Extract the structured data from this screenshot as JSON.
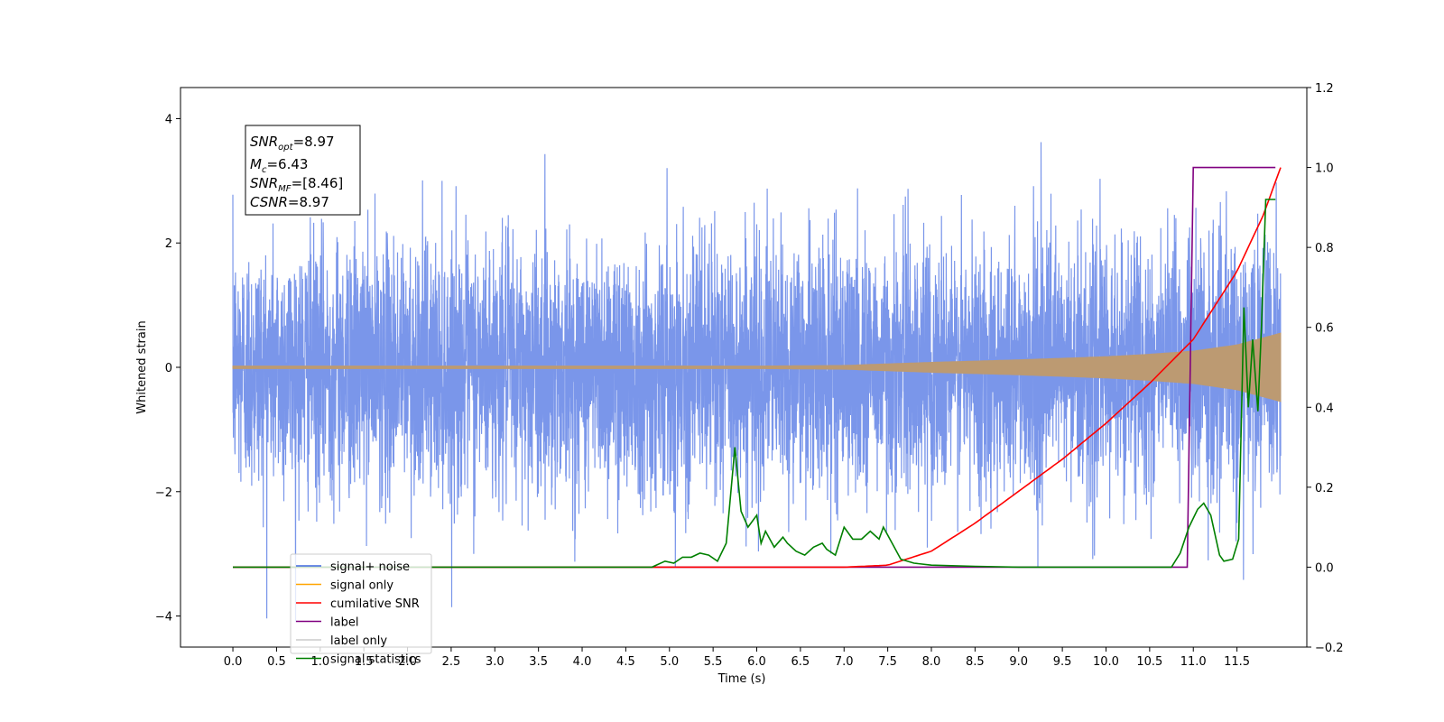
{
  "chart_data": {
    "type": "line",
    "xlabel": "Time (s)",
    "ylabel": "Whitened strain",
    "xlim": [
      -0.6,
      12.3
    ],
    "ylim": [
      -4.5,
      4.5
    ],
    "y2lim": [
      -0.2,
      1.2
    ],
    "x_ticks": [
      "0.0",
      "0.5",
      "1.0",
      "1.5",
      "2.0",
      "2.5",
      "3.0",
      "3.5",
      "4.0",
      "4.5",
      "5.0",
      "5.5",
      "6.0",
      "6.5",
      "7.0",
      "7.5",
      "8.0",
      "8.5",
      "9.0",
      "9.5",
      "10.0",
      "10.5",
      "11.0",
      "11.5"
    ],
    "y_ticks": [
      "−4",
      "−2",
      "0",
      "2",
      "4"
    ],
    "y2_ticks": [
      "−0.2",
      "0.0",
      "0.2",
      "0.4",
      "0.6",
      "0.8",
      "1.0",
      "1.2"
    ],
    "stats_box": {
      "snr_opt": {
        "name": "SNR",
        "sub": "opt",
        "value": "=8.97"
      },
      "mc": {
        "name": "M",
        "sub": "c",
        "value": "=6.43"
      },
      "snr_mf": {
        "name": "SNR",
        "sub": "MF",
        "value": "=[8.46]"
      },
      "csnr": {
        "name": "CSNR",
        "sub": "",
        "value": "=8.97"
      }
    },
    "legend": {
      "placement": "lower-left",
      "entries": [
        {
          "label": "signal+ noise",
          "color": "#4169e1"
        },
        {
          "label": "signal only",
          "color": "#ffa500"
        },
        {
          "label": "cumilative SNR",
          "color": "#ff0000"
        },
        {
          "label": "label",
          "color": "#800080"
        },
        {
          "label": "label only",
          "color": "#cccccc"
        },
        {
          "label": "signal statistics",
          "color": "#008000"
        }
      ]
    },
    "series": [
      {
        "name": "signal+ noise",
        "axis": "left",
        "color": "#4169e1",
        "x_range": [
          0.0,
          12.0
        ],
        "description_std": 1.0
      },
      {
        "name": "signal only",
        "axis": "left",
        "color": "#ffa500",
        "x": [
          0.0,
          6.0,
          7.0,
          8.0,
          9.0,
          10.0,
          10.5,
          11.0,
          11.5,
          12.0
        ],
        "amplitude": [
          0.02,
          0.02,
          0.03,
          0.08,
          0.12,
          0.17,
          0.21,
          0.26,
          0.36,
          0.55
        ]
      },
      {
        "name": "cumilative SNR",
        "axis": "right",
        "color": "#ff0000",
        "x": [
          0.0,
          7.0,
          7.5,
          8.0,
          8.5,
          9.0,
          9.5,
          10.0,
          10.5,
          11.0,
          11.5,
          11.8,
          12.0
        ],
        "values": [
          0.0,
          0.0,
          0.005,
          0.04,
          0.11,
          0.19,
          0.27,
          0.36,
          0.46,
          0.57,
          0.74,
          0.88,
          1.0
        ]
      },
      {
        "name": "label",
        "axis": "right",
        "color": "#800080",
        "x": [
          0.0,
          10.93,
          11.0,
          11.94
        ],
        "values": [
          0.0,
          0.0,
          1.0,
          1.0
        ]
      },
      {
        "name": "signal statistics",
        "axis": "right",
        "color": "#008000",
        "x": [
          0.0,
          4.8,
          4.95,
          5.05,
          5.15,
          5.25,
          5.35,
          5.45,
          5.55,
          5.65,
          5.75,
          5.82,
          5.9,
          6.0,
          6.05,
          6.1,
          6.15,
          6.2,
          6.3,
          6.35,
          6.45,
          6.55,
          6.65,
          6.75,
          6.8,
          6.9,
          7.0,
          7.1,
          7.2,
          7.3,
          7.4,
          7.45,
          7.55,
          7.65,
          7.8,
          8.0,
          8.5,
          9.0,
          9.2,
          10.0,
          10.75,
          10.85,
          10.95,
          11.05,
          11.12,
          11.2,
          11.3,
          11.35,
          11.45,
          11.52,
          11.58,
          11.63,
          11.68,
          11.74,
          11.78,
          11.83,
          11.88,
          11.94
        ],
        "values": [
          0.0,
          0.0,
          0.015,
          0.01,
          0.025,
          0.025,
          0.035,
          0.03,
          0.015,
          0.06,
          0.3,
          0.14,
          0.1,
          0.13,
          0.06,
          0.09,
          0.07,
          0.05,
          0.075,
          0.06,
          0.04,
          0.03,
          0.05,
          0.06,
          0.045,
          0.03,
          0.1,
          0.07,
          0.07,
          0.09,
          0.07,
          0.1,
          0.06,
          0.02,
          0.01,
          0.005,
          0.002,
          0.0,
          0.0,
          0.0,
          0.0,
          0.035,
          0.1,
          0.145,
          0.16,
          0.13,
          0.03,
          0.015,
          0.02,
          0.07,
          0.65,
          0.4,
          0.57,
          0.39,
          0.6,
          0.92,
          0.92,
          0.92
        ]
      }
    ]
  }
}
